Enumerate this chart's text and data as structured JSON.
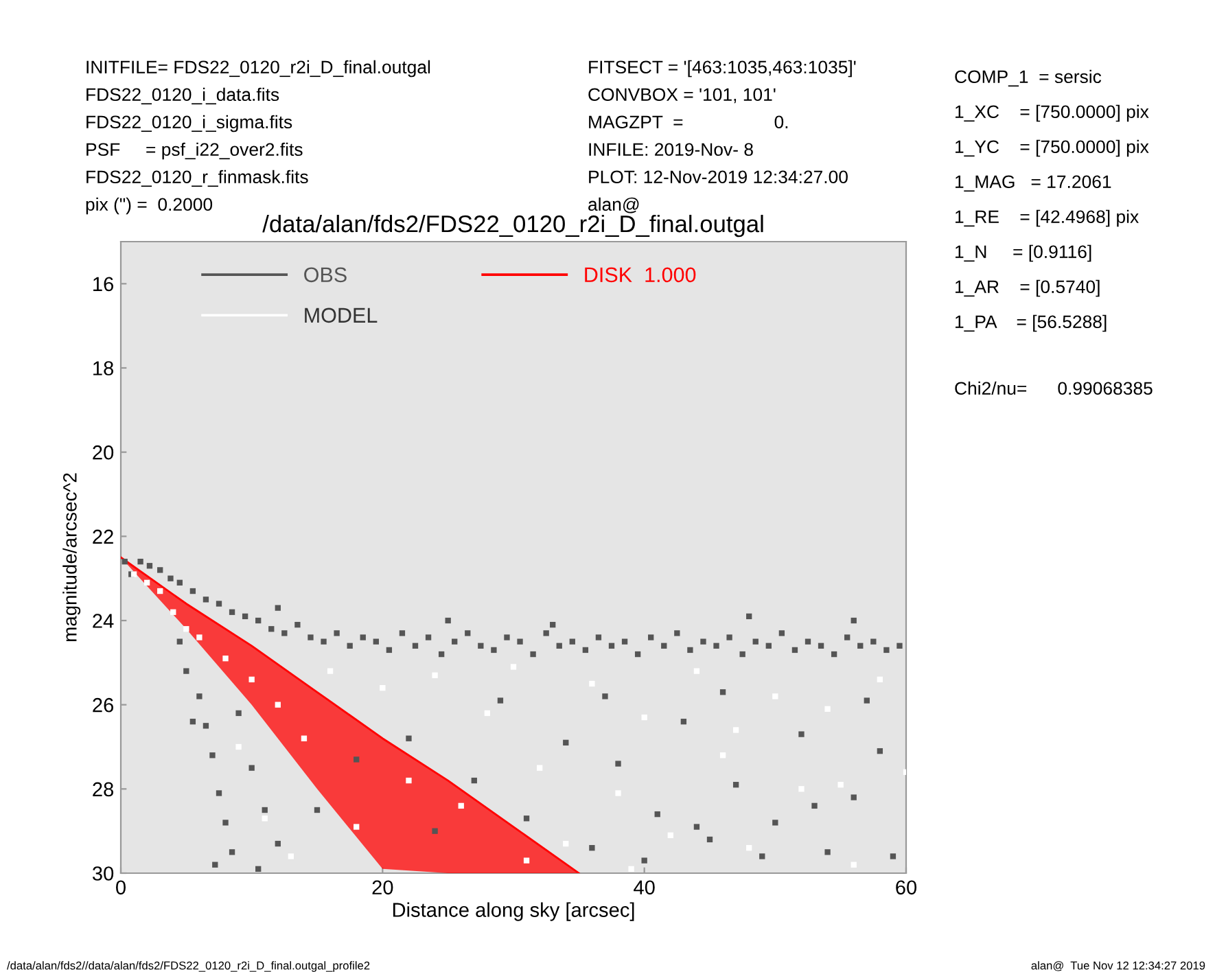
{
  "chart_data": {
    "type": "scatter",
    "title": "/data/alan/fds2/FDS22_0120_r2i_D_final.outgal",
    "xlabel": "Distance along sky [arcsec]",
    "ylabel": "magnitude/arcsec^2",
    "xlim": [
      0,
      60
    ],
    "xticks": [
      0,
      20,
      40,
      60
    ],
    "ylim": [
      30,
      15
    ],
    "yticks": [
      16,
      18,
      20,
      22,
      24,
      26,
      28,
      30
    ],
    "grid": false,
    "legend": "top left",
    "annotations": [
      "INITFILE= FDS22_0120_r2i_D_final.outgal",
      "FDS22_0120_i_data.fits",
      "FDS22_0120_i_sigma.fits",
      "PSF     = psf_i22_over2.fits",
      "FDS22_0120_r_finmask.fits",
      "pix (\") =  0.2000",
      "FITSECT = '[463:1035,463:1035]'",
      "CONVBOX = '101, 101'",
      "MAGZPT  =                  0.",
      "INFILE: 2019-Nov- 8",
      "PLOT: 12-Nov-2019 12:34:27.00",
      "alan@",
      "COMP_1  = sersic",
      "1_XC    = [750.0000] pix",
      "1_YC    = [750.0000] pix",
      "1_MAG   = 17.2061",
      "1_RE    = [42.4968] pix",
      "1_N     = [0.9116]",
      "1_AR    = [0.5740]",
      "1_PA    = [56.5288]",
      "Chi2/nu=      0.99068385",
      "/data/alan/fds2//data/alan/fds2/FDS22_0120_r2i_D_final.outgal_profile2",
      "alan@  Tue Nov 12 12:34:27 2019"
    ],
    "series": [
      {
        "name": "OBS",
        "color": "#555555",
        "marker": "square",
        "x": [
          0.3,
          0.8,
          1.5,
          2.2,
          3,
          3.8,
          4.5,
          5.5,
          6.5,
          7.5,
          8.5,
          9.5,
          10.5,
          11.5,
          12.5,
          13.5,
          14.5,
          15.5,
          16.5,
          17.5,
          18.5,
          19.5,
          20.5,
          21.5,
          22.5,
          23.5,
          24.5,
          25.5,
          26.5,
          27.5,
          28.5,
          29.5,
          30.5,
          31.5,
          32.5,
          33.5,
          34.5,
          35.5,
          36.5,
          37.5,
          38.5,
          39.5,
          40.5,
          41.5,
          42.5,
          43.5,
          44.5,
          45.5,
          46.5,
          47.5,
          48.5,
          49.5,
          50.5,
          51.5,
          52.5,
          53.5,
          54.5,
          55.5,
          56.5,
          57.5,
          58.5,
          59.5,
          12,
          25,
          33,
          48,
          56,
          4.5,
          5,
          6,
          6.5,
          7,
          7.5,
          8,
          8.5,
          9,
          10,
          11,
          12,
          5.5,
          7.2,
          10.5,
          15,
          18,
          22,
          24,
          27,
          29,
          31,
          34,
          36,
          38,
          41,
          43,
          45,
          47,
          50,
          52,
          54,
          56,
          58,
          59,
          40,
          44,
          49,
          53,
          46,
          37,
          57
        ],
        "values": [
          22.6,
          22.9,
          22.6,
          22.7,
          22.8,
          23.0,
          23.1,
          23.3,
          23.5,
          23.6,
          23.8,
          23.9,
          24.0,
          24.2,
          24.3,
          24.1,
          24.4,
          24.5,
          24.3,
          24.6,
          24.4,
          24.5,
          24.7,
          24.3,
          24.6,
          24.4,
          24.8,
          24.5,
          24.3,
          24.6,
          24.7,
          24.4,
          24.5,
          24.8,
          24.3,
          24.6,
          24.5,
          24.7,
          24.4,
          24.6,
          24.5,
          24.8,
          24.4,
          24.6,
          24.3,
          24.7,
          24.5,
          24.6,
          24.4,
          24.8,
          24.5,
          24.6,
          24.3,
          24.7,
          24.5,
          24.6,
          24.8,
          24.4,
          24.6,
          24.5,
          24.7,
          24.6,
          23.7,
          24.0,
          24.1,
          23.9,
          24.0,
          24.5,
          25.2,
          25.8,
          26.5,
          27.2,
          28.1,
          28.8,
          29.5,
          26.2,
          27.5,
          28.5,
          29.3,
          26.4,
          29.8,
          29.9,
          28.5,
          27.3,
          26.8,
          29.0,
          27.8,
          25.9,
          28.7,
          26.9,
          29.4,
          27.4,
          28.6,
          26.4,
          29.2,
          27.9,
          28.8,
          26.7,
          29.5,
          28.2,
          27.1,
          29.6,
          29.7,
          28.9,
          29.6,
          28.4,
          25.7,
          25.8,
          25.9
        ]
      },
      {
        "name": "MODEL",
        "color": "#ffffff",
        "marker": "square",
        "x": [
          1,
          2,
          3,
          4,
          5,
          6,
          8,
          10,
          12,
          14,
          9,
          11,
          13,
          16,
          18,
          20,
          22,
          24,
          26,
          28,
          30,
          32,
          34,
          36,
          38,
          40,
          42,
          44,
          46,
          48,
          50,
          52,
          54,
          56,
          58,
          60,
          39,
          47,
          55,
          31
        ],
        "values": [
          22.9,
          23.1,
          23.3,
          23.8,
          24.2,
          24.4,
          24.9,
          25.4,
          26.0,
          26.8,
          27.0,
          28.7,
          29.6,
          25.2,
          28.9,
          25.6,
          27.8,
          25.3,
          28.4,
          26.2,
          25.1,
          27.5,
          29.3,
          25.5,
          28.1,
          26.3,
          29.1,
          25.2,
          27.2,
          29.4,
          25.8,
          28.0,
          26.1,
          29.8,
          25.4,
          27.6,
          29.9,
          26.6,
          27.9,
          29.7
        ]
      },
      {
        "name": "DISK  1.000",
        "color": "#ff0000",
        "type": "line",
        "x": [
          0,
          5,
          10,
          15,
          20,
          25,
          30,
          35
        ],
        "values": [
          22.5,
          23.6,
          24.6,
          25.7,
          26.8,
          27.8,
          28.9,
          30.0
        ],
        "lower": [
          22.5,
          23.6,
          24.6,
          25.7,
          26.8,
          27.8,
          28.9,
          30.0
        ],
        "upper": [
          22.5,
          24.2,
          26.0,
          28.0,
          29.9,
          30.0,
          30.0,
          30.0
        ]
      }
    ]
  }
}
